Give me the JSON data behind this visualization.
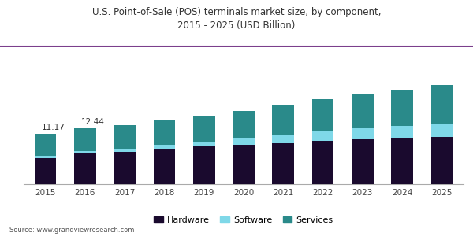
{
  "years": [
    "2015",
    "2016",
    "2017",
    "2018",
    "2019",
    "2020",
    "2021",
    "2022",
    "2023",
    "2024",
    "2025"
  ],
  "hardware": [
    5.8,
    6.8,
    7.2,
    7.9,
    8.4,
    8.8,
    9.2,
    9.6,
    10.0,
    10.3,
    10.5
  ],
  "software": [
    0.57,
    0.64,
    0.78,
    0.9,
    1.06,
    1.4,
    1.78,
    2.1,
    2.4,
    2.7,
    3.0
  ],
  "services": [
    4.8,
    5.0,
    5.1,
    5.4,
    5.8,
    6.2,
    6.6,
    7.2,
    7.6,
    8.1,
    8.6
  ],
  "color_hardware": "#1a0a2e",
  "color_software": "#7fd8e8",
  "color_services": "#2a8a8a",
  "title_line1": "U.S. Point-of-Sale (POS) terminals market size, by component,",
  "title_line2": "2015 - 2025 (USD Billion)",
  "annotations": {
    "2015": "11.17",
    "2016": "12.44"
  },
  "legend_labels": [
    "Hardware",
    "Software",
    "Services"
  ],
  "source": "Source: www.grandviewresearch.com",
  "bar_width": 0.55,
  "ylim": [
    0,
    30
  ],
  "title_color": "#333333",
  "background_color": "#ffffff",
  "plot_bg_color": "#ffffff",
  "header_bg_color": "#eeecf5",
  "header_line_color": "#7b3f8c"
}
